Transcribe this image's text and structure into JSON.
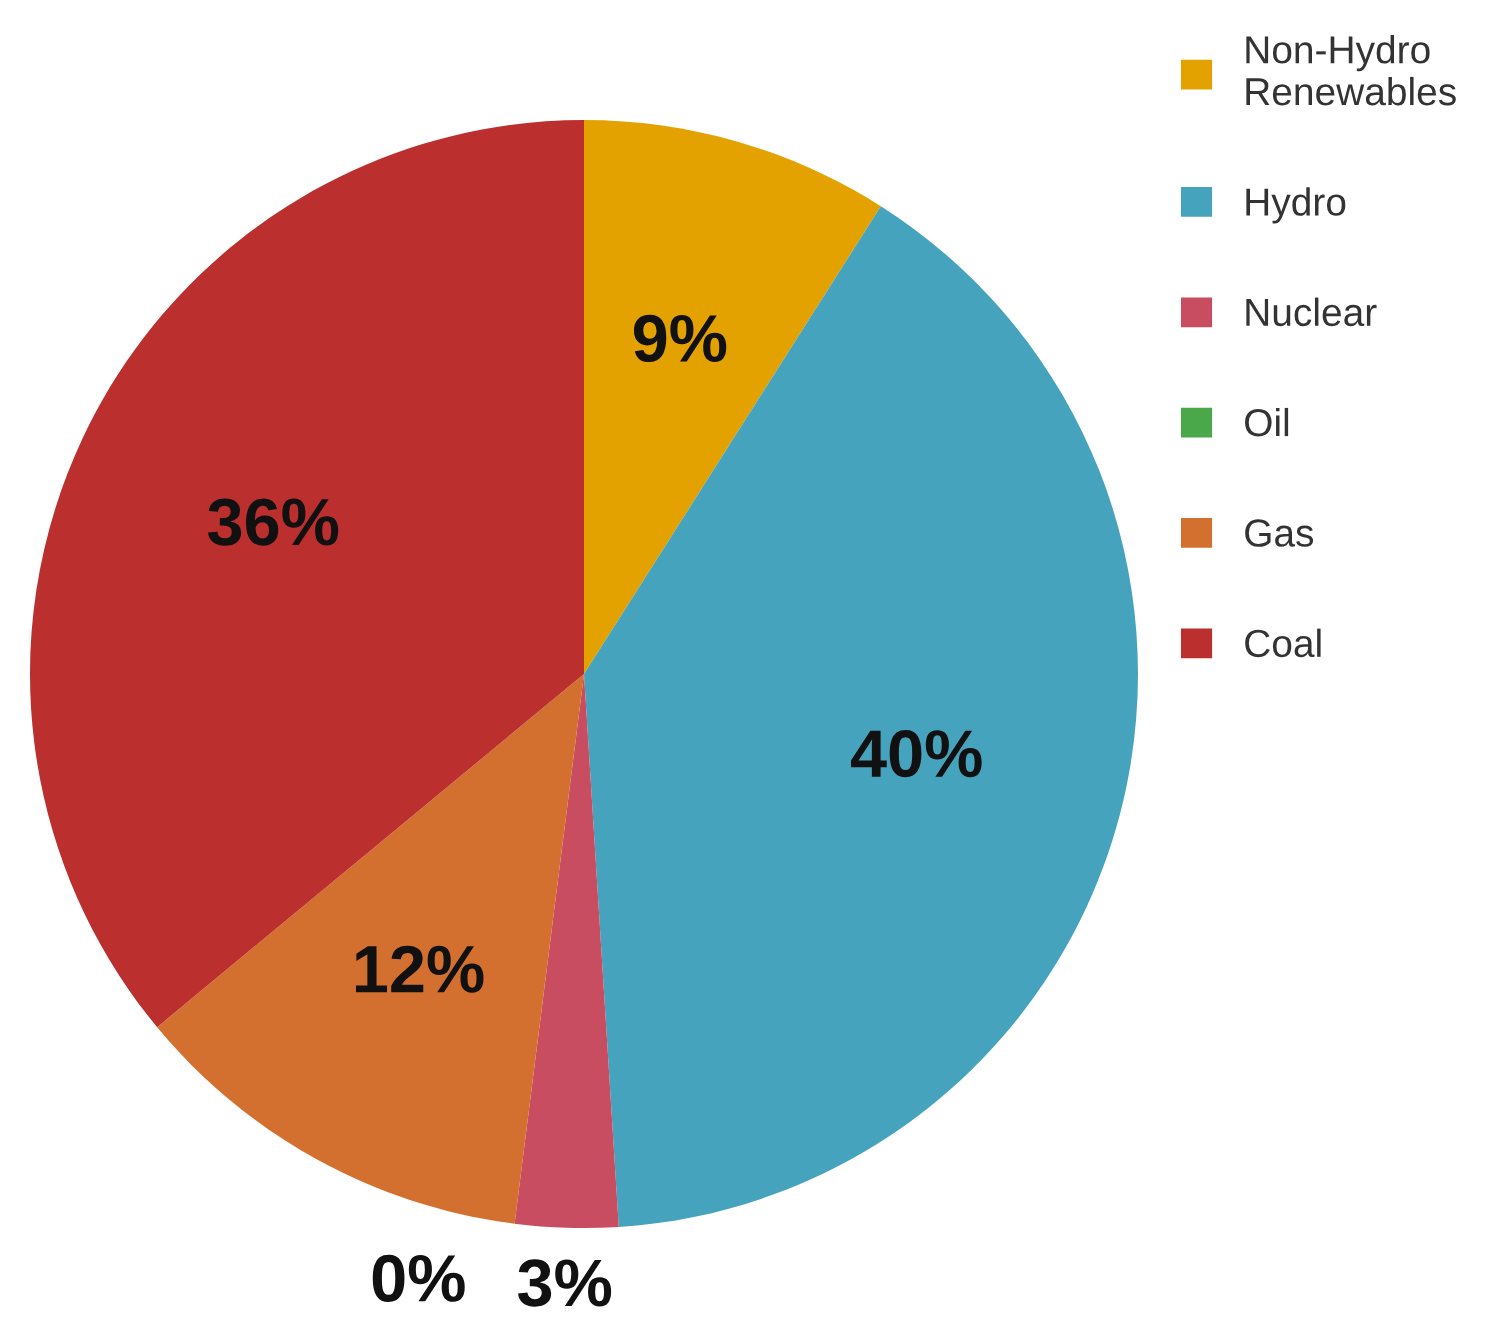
{
  "chart_data": {
    "type": "pie",
    "categories": [
      "Non-Hydro\nRenewables",
      "Hydro",
      "Nuclear",
      "Oil",
      "Gas",
      "Coal"
    ],
    "values": [
      9,
      40,
      3,
      0,
      12,
      36
    ],
    "colors": [
      "#e3a200",
      "#46a3bd",
      "#c94d60",
      "#4aa84a",
      "#d4702f",
      "#bb2f2e"
    ],
    "value_labels": [
      "9%",
      "40%",
      "3%",
      "0%",
      "12%",
      "36%"
    ],
    "legend": "top right"
  }
}
